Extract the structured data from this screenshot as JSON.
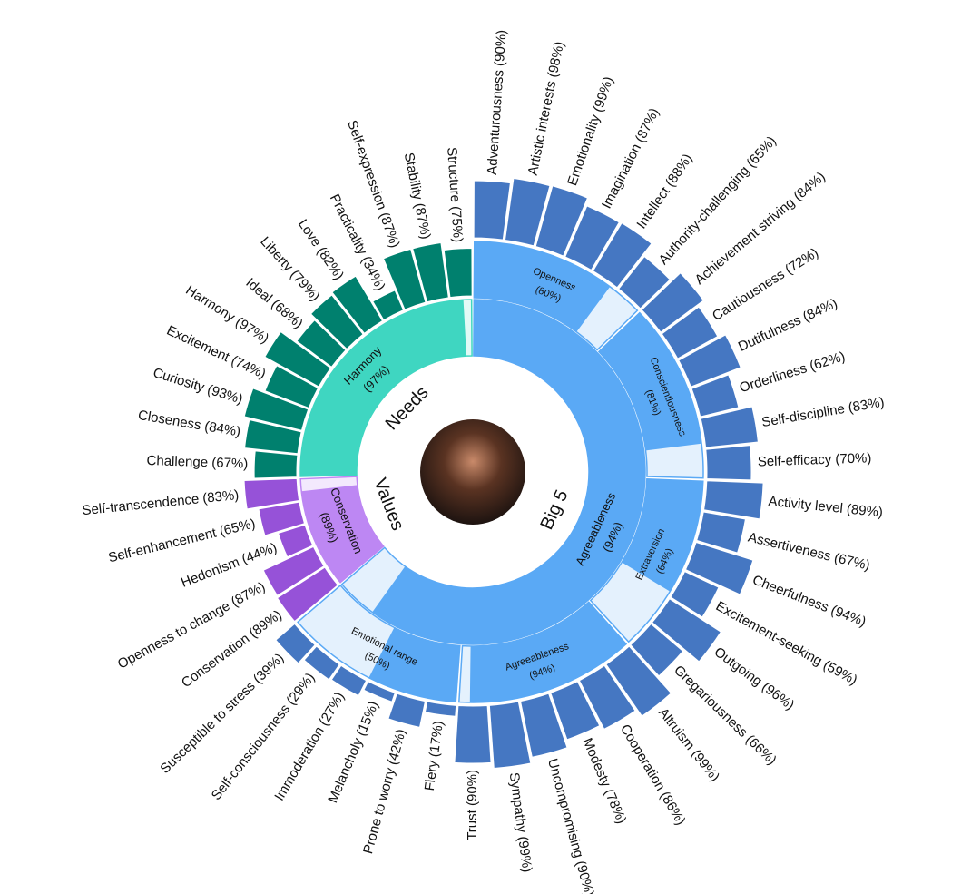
{
  "chart_data": {
    "type": "sunburst",
    "groups": [
      {
        "label": "Big 5",
        "ring_color": "#5aa9f5",
        "light_color": "#e4f1fd",
        "facet_color": "#4577c2",
        "summary": {
          "lines": [
            "Agreeableness",
            "(94%)"
          ],
          "value": 94
        },
        "traits": [
          {
            "lines": [
              "Openness",
              "(80%)"
            ],
            "value": 80,
            "facets": [
              {
                "label": "Adventurousness (90%)",
                "value": 90
              },
              {
                "label": "Artistic interests (98%)",
                "value": 98
              },
              {
                "label": "Emotionality (99%)",
                "value": 99
              },
              {
                "label": "Imagination (87%)",
                "value": 87
              },
              {
                "label": "Intellect (88%)",
                "value": 88
              },
              {
                "label": "Authority-challenging (65%)",
                "value": 65
              }
            ]
          },
          {
            "lines": [
              "Conscientiousness",
              "(81%)"
            ],
            "value": 81,
            "facets": [
              {
                "label": "Achievement striving (84%)",
                "value": 84
              },
              {
                "label": "Cautiousness (72%)",
                "value": 72
              },
              {
                "label": "Dutifulness (84%)",
                "value": 84
              },
              {
                "label": "Orderliness (62%)",
                "value": 62
              },
              {
                "label": "Self-discipline (83%)",
                "value": 83
              },
              {
                "label": "Self-efficacy (70%)",
                "value": 70
              }
            ]
          },
          {
            "lines": [
              "Extraversion",
              "(64%)"
            ],
            "value": 64,
            "facets": [
              {
                "label": "Activity level (89%)",
                "value": 89
              },
              {
                "label": "Assertiveness (67%)",
                "value": 67
              },
              {
                "label": "Cheerfulness (94%)",
                "value": 94
              },
              {
                "label": "Excitement-seeking (59%)",
                "value": 59
              },
              {
                "label": "Outgoing (96%)",
                "value": 96
              },
              {
                "label": "Gregariousness (66%)",
                "value": 66
              }
            ]
          },
          {
            "lines": [
              "Agreeableness",
              "(94%)"
            ],
            "value": 94,
            "facets": [
              {
                "label": "Altruism (99%)",
                "value": 99
              },
              {
                "label": "Cooperation (86%)",
                "value": 86
              },
              {
                "label": "Modesty (78%)",
                "value": 78
              },
              {
                "label": "Uncompromising (90%)",
                "value": 90
              },
              {
                "label": "Sympathy (99%)",
                "value": 99
              },
              {
                "label": "Trust (90%)",
                "value": 90
              }
            ]
          },
          {
            "lines": [
              "Emotional range",
              "(50%)"
            ],
            "value": 50,
            "facets": [
              {
                "label": "Fiery (17%)",
                "value": 17
              },
              {
                "label": "Prone to worry (42%)",
                "value": 42
              },
              {
                "label": "Melancholy (15%)",
                "value": 15
              },
              {
                "label": "Immoderation (27%)",
                "value": 27
              },
              {
                "label": "Self-consciousness (29%)",
                "value": 29
              },
              {
                "label": "Susceptible to stress (39%)",
                "value": 39
              }
            ]
          }
        ]
      },
      {
        "label": "Values",
        "ring_color": "#bd87f3",
        "light_color": "#f3e9fd",
        "facet_color": "#9652d8",
        "summary": {
          "lines": [
            "Conservation",
            "(89%)"
          ],
          "value": 89
        },
        "facets": [
          {
            "label": "Conservation (89%)",
            "value": 89
          },
          {
            "label": "Openness to change (87%)",
            "value": 87
          },
          {
            "label": "Hedonism (44%)",
            "value": 44
          },
          {
            "label": "Self-enhancement (65%)",
            "value": 65
          },
          {
            "label": "Self-transcendence (83%)",
            "value": 83
          }
        ]
      },
      {
        "label": "Needs",
        "ring_color": "#3fd6c1",
        "light_color": "#e2faf6",
        "facet_color": "#00806e",
        "summary": {
          "lines": [
            "Harmony",
            "(97%)"
          ],
          "value": 97
        },
        "facets": [
          {
            "label": "Challenge (67%)",
            "value": 67
          },
          {
            "label": "Closeness (84%)",
            "value": 84
          },
          {
            "label": "Curiosity (93%)",
            "value": 93
          },
          {
            "label": "Excitement (74%)",
            "value": 74
          },
          {
            "label": "Harmony (97%)",
            "value": 97
          },
          {
            "label": "Ideal (68%)",
            "value": 68
          },
          {
            "label": "Liberty (79%)",
            "value": 79
          },
          {
            "label": "Love (82%)",
            "value": 82
          },
          {
            "label": "Practicality (34%)",
            "value": 34
          },
          {
            "label": "Self-expression (87%)",
            "value": 87
          },
          {
            "label": "Stability (87%)",
            "value": 87
          },
          {
            "label": "Structure (75%)",
            "value": 75
          }
        ]
      }
    ]
  }
}
